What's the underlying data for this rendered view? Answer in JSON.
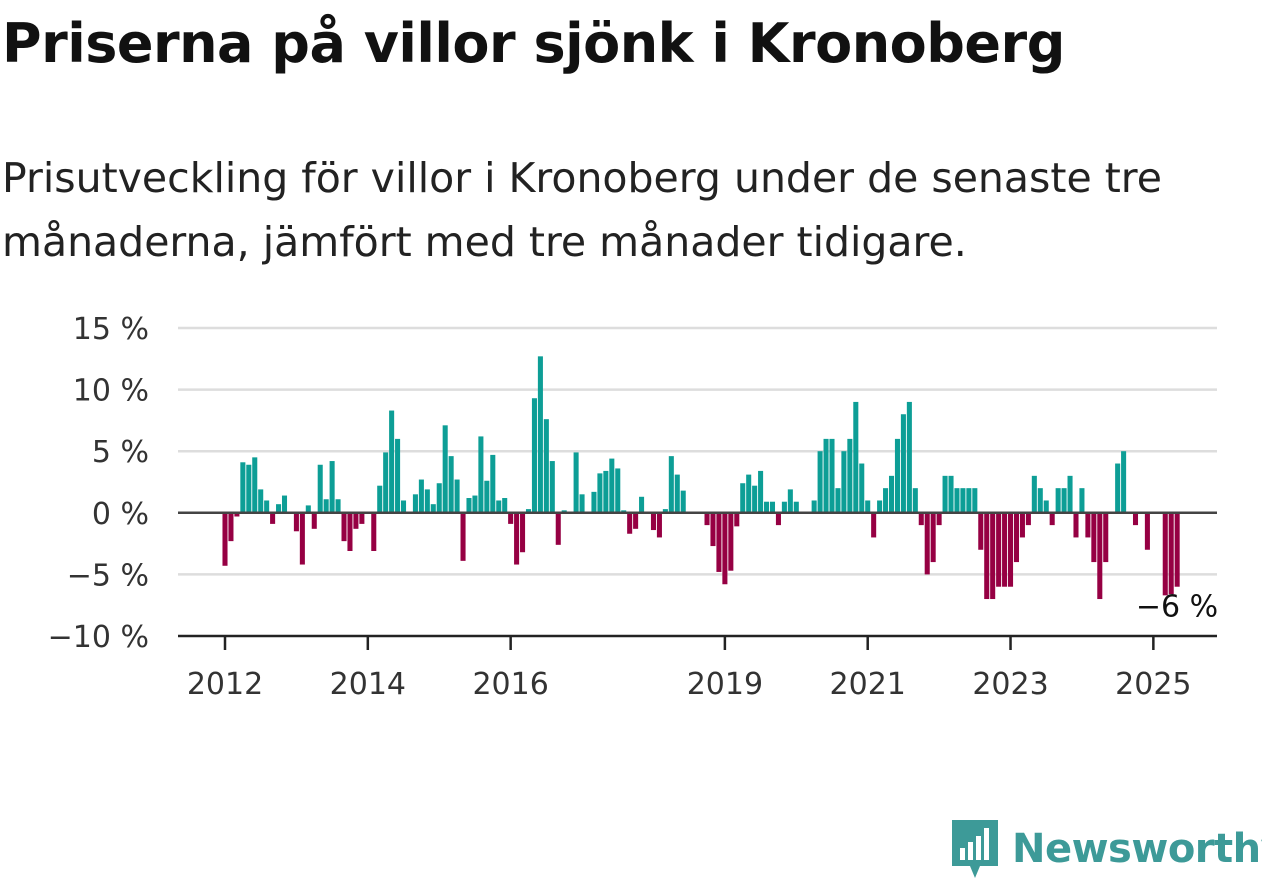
{
  "title": "Priserna på villor sjönk i Kronoberg",
  "subtitle": "Prisutveckling för villor i Kronoberg under de senaste tre månaderna, jämfört med tre månader tidigare.",
  "brand": {
    "name": "Newsworthy",
    "color": "#3d9a98",
    "icon": "newsworthy-logo-icon"
  },
  "colors": {
    "positive": "#0d9e96",
    "negative": "#960043",
    "grid": "#dddddd",
    "zero_line": "#444444"
  },
  "chart_data": {
    "type": "bar",
    "title": "Priserna på villor sjönk i Kronoberg",
    "subtitle": "Prisutveckling för villor i Kronoberg under de senaste tre månaderna, jämfört med tre månader tidigare.",
    "xlabel": "",
    "ylabel": "",
    "x_start": "2012-01",
    "x_end": "2025-03",
    "frequency": "monthly",
    "ylim": [
      -10,
      15
    ],
    "y_ticks": [
      15,
      10,
      5,
      0,
      -5,
      -10
    ],
    "y_tick_labels": [
      "15 %",
      "10 %",
      "5 %",
      "0 %",
      "−5 %",
      "−10 %"
    ],
    "x_tick_labels": [
      "2012",
      "2014",
      "2016",
      "2019",
      "2021",
      "2023",
      "2025"
    ],
    "end_label": "−6 %",
    "grid": true,
    "unit": "%",
    "values": [
      -4.3,
      -2.3,
      -0.3,
      4.1,
      3.9,
      4.5,
      1.9,
      1.0,
      -0.9,
      0.7,
      1.4,
      0,
      -1.5,
      -4.2,
      0.6,
      -1.3,
      3.9,
      1.1,
      4.2,
      1.1,
      -2.3,
      -3.1,
      -1.3,
      -0.9,
      0,
      -3.1,
      2.2,
      4.9,
      8.3,
      6.0,
      1.0,
      0,
      1.5,
      2.7,
      1.9,
      0.7,
      2.4,
      7.1,
      4.6,
      2.7,
      -3.9,
      1.2,
      1.4,
      6.2,
      2.6,
      4.7,
      1.0,
      1.2,
      -0.9,
      -4.2,
      -3.2,
      0.3,
      9.3,
      12.7,
      7.6,
      4.2,
      -2.6,
      0.2,
      0,
      4.9,
      1.5,
      0,
      1.7,
      3.2,
      3.4,
      4.4,
      3.6,
      0.2,
      -1.7,
      -1.3,
      1.3,
      0,
      -1.4,
      -2.0,
      0.3,
      4.6,
      3.1,
      1.8,
      0,
      0.1,
      0,
      -1.0,
      -2.7,
      -4.8,
      -5.8,
      -4.7,
      -1.1,
      2.4,
      3.1,
      2.2,
      3.4,
      0.9,
      0.9,
      -1.0,
      0.9,
      1.9,
      0.9,
      0,
      0,
      1.0,
      5.0,
      6.0,
      6.0,
      2.0,
      5.0,
      6.0,
      9.0,
      4.0,
      1.0,
      -2.0,
      1.0,
      2.0,
      3.0,
      6.0,
      8.0,
      9.0,
      2.0,
      -1.0,
      -5.0,
      -4.0,
      -1.0,
      3.0,
      3.0,
      2.0,
      2.0,
      2.0,
      2.0,
      -3.0,
      -7.0,
      -7.0,
      -6.0,
      -6.0,
      -6.0,
      -4.0,
      -2.0,
      -1.0,
      3.0,
      2.0,
      1.0,
      -1.0,
      2.0,
      2.0,
      3.0,
      -2.0,
      2.0,
      -2.0,
      -4.0,
      -7.0,
      -4.0,
      0,
      4.0,
      5.0,
      0,
      -1.0,
      0,
      -3.0,
      0,
      0,
      -6.7,
      -6.6,
      -6.0
    ]
  }
}
